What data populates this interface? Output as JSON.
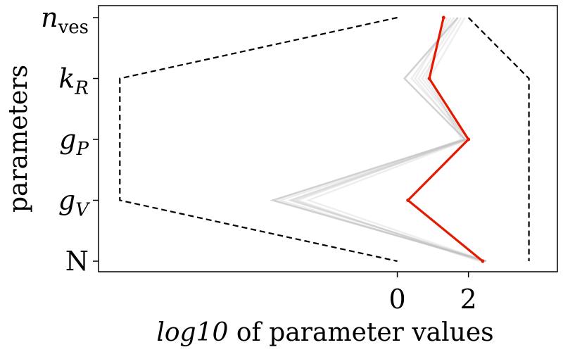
{
  "chart_data": {
    "type": "line",
    "orientation": "horizontal",
    "xlabel": "log10 of parameter values",
    "xlabel_parts": {
      "italic": "log10",
      "rest": " of parameter values"
    },
    "ylabel": "parameters",
    "y_categories": [
      {
        "label": "n_ves",
        "base": "n",
        "sub": "ves"
      },
      {
        "label": "k_R",
        "base": "k",
        "sub": "R"
      },
      {
        "label": "g_P",
        "base": "g",
        "sub": "P"
      },
      {
        "label": "g_V",
        "base": "g",
        "sub": "V"
      },
      {
        "label": "N",
        "base": "N",
        "sub": ""
      }
    ],
    "xticks": [
      0,
      2
    ],
    "xtick_labels": [
      "0",
      "2"
    ],
    "xlim": [
      -8.4,
      4.5
    ],
    "grid": false,
    "bounds": {
      "lower": [
        0,
        -7.8,
        -7.8,
        -7.8,
        0
      ],
      "upper": [
        2,
        3.7,
        3.7,
        3.7,
        3.7
      ]
    },
    "best_fit": {
      "color": "#e31a00",
      "values": [
        1.3,
        0.9,
        2.0,
        0.3,
        2.4
      ]
    },
    "samples": {
      "color": "#bdbdbd",
      "runs": [
        [
          1.7,
          0.2,
          1.9,
          -3.5,
          2.5
        ],
        [
          1.6,
          0.4,
          2.0,
          -3.0,
          2.5
        ],
        [
          1.5,
          0.5,
          1.9,
          -2.9,
          2.4
        ],
        [
          1.8,
          0.7,
          2.0,
          -2.5,
          2.5
        ],
        [
          1.4,
          0.8,
          1.9,
          -2.8,
          2.3
        ],
        [
          1.7,
          0.6,
          2.0,
          -3.3,
          2.4
        ],
        [
          1.9,
          0.9,
          1.8,
          -3.0,
          2.5
        ]
      ]
    }
  }
}
